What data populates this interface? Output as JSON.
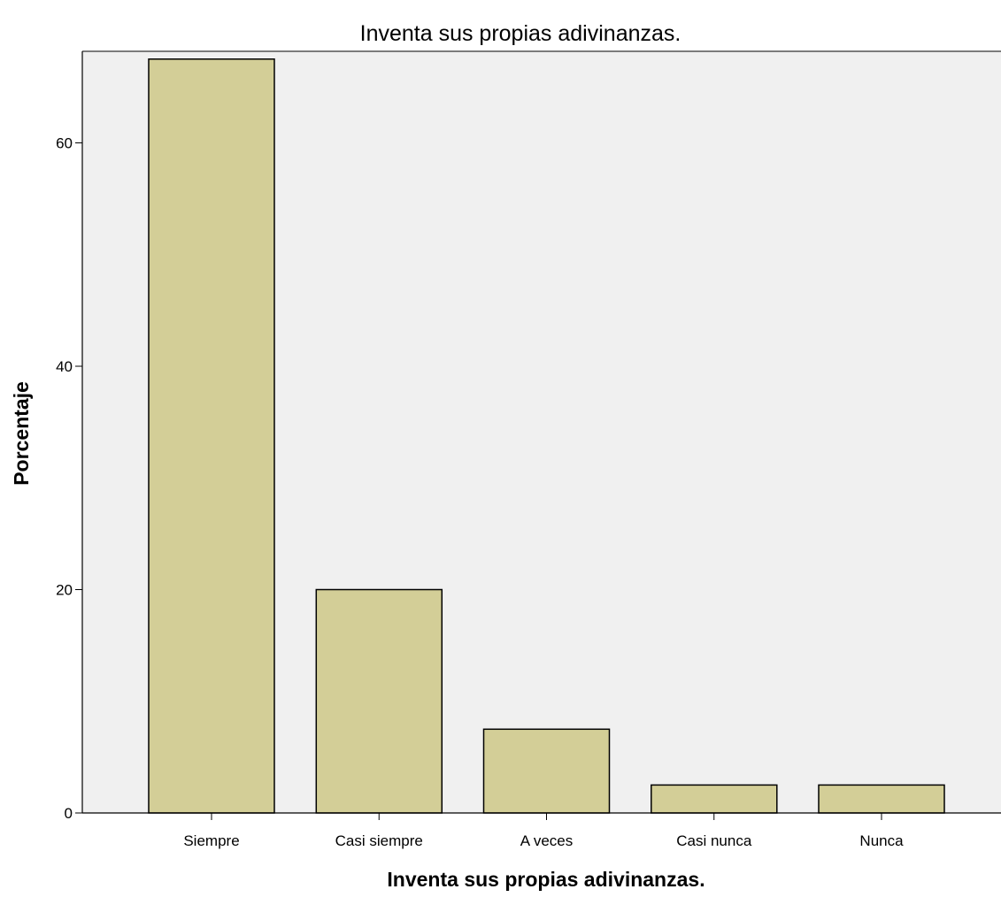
{
  "chart_data": {
    "type": "bar",
    "title": "Inventa sus propias adivinanzas.",
    "xlabel": "Inventa sus propias adivinanzas.",
    "ylabel": "Porcentaje",
    "categories": [
      "Siempre",
      "Casi siempre",
      "A veces",
      "Casi nunca",
      "Nunca"
    ],
    "values": [
      67.5,
      20.0,
      7.5,
      2.5,
      2.5
    ],
    "ylim": [
      0,
      68.2
    ],
    "yticks": [
      0,
      20,
      40,
      60
    ],
    "grid": false,
    "legend": "none",
    "colors": {
      "bar_fill": "#d3ce97",
      "bar_stroke": "#000000",
      "plot_background": "#f0f0f0",
      "page_background": "#ffffff"
    }
  }
}
